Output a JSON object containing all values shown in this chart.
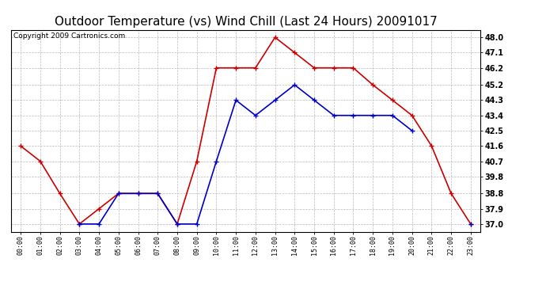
{
  "title": "Outdoor Temperature (vs) Wind Chill (Last 24 Hours) 20091017",
  "copyright": "Copyright 2009 Cartronics.com",
  "hours": [
    "00:00",
    "01:00",
    "02:00",
    "03:00",
    "04:00",
    "05:00",
    "06:00",
    "07:00",
    "08:00",
    "09:00",
    "10:00",
    "11:00",
    "12:00",
    "13:00",
    "14:00",
    "15:00",
    "16:00",
    "17:00",
    "18:00",
    "19:00",
    "20:00",
    "21:00",
    "22:00",
    "23:00"
  ],
  "temp_vals": [
    41.6,
    40.7,
    38.8,
    37.0,
    37.9,
    38.8,
    38.8,
    38.8,
    37.0,
    40.7,
    46.2,
    46.2,
    46.2,
    48.0,
    47.1,
    46.2,
    46.2,
    46.2,
    45.2,
    44.3,
    43.4,
    41.6,
    38.8,
    37.0
  ],
  "wc_vals": [
    null,
    null,
    null,
    37.0,
    37.0,
    38.8,
    38.8,
    38.8,
    37.0,
    37.0,
    40.7,
    44.3,
    43.4,
    44.3,
    45.2,
    44.3,
    43.4,
    43.4,
    43.4,
    43.4,
    42.5,
    null,
    null,
    37.0
  ],
  "temp_color": "#cc0000",
  "wc_color": "#0000cc",
  "bg_color": "#ffffff",
  "grid_color": "#bbbbbb",
  "ylim": [
    36.55,
    48.45
  ],
  "yticks": [
    37.0,
    37.9,
    38.8,
    39.8,
    40.7,
    41.6,
    42.5,
    43.4,
    44.3,
    45.2,
    46.2,
    47.1,
    48.0
  ],
  "title_fontsize": 11,
  "copyright_fontsize": 6.5,
  "marker": "+",
  "marker_size": 5,
  "linewidth": 1.2
}
